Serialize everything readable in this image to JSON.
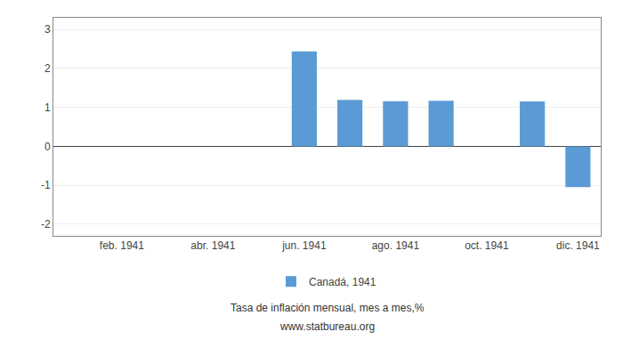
{
  "chart_data": {
    "type": "bar",
    "subtitle": "Tasa de inflación mensual, mes a mes,%",
    "annotations": [
      "www.statbureau.org"
    ],
    "categories": [
      null,
      "feb. 1941",
      null,
      "abr. 1941",
      null,
      "jun. 1941",
      null,
      "ago. 1941",
      null,
      "oct. 1941",
      null,
      "dic. 1941"
    ],
    "series": [
      {
        "name": "Canadá, 1941",
        "color": "#5B9BD5",
        "values": [
          null,
          null,
          null,
          null,
          null,
          2.44,
          1.19,
          1.16,
          1.17,
          null,
          1.15,
          -1.05
        ]
      }
    ],
    "ylim": [
      -2.3,
      3.3
    ],
    "yticks": [
      -2,
      -1,
      0,
      1,
      2,
      3
    ],
    "grid": true,
    "legend": "bottom"
  }
}
